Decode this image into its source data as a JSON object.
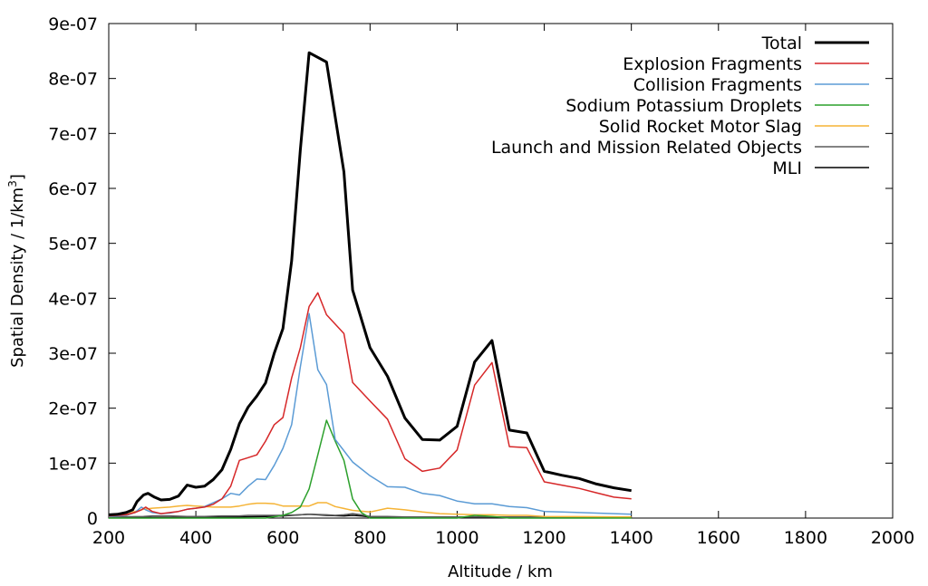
{
  "chart_data": {
    "type": "line",
    "xlabel": "Altitude / km",
    "ylabel": "Spatial Density / 1/km",
    "ylabel_sup": "3",
    "ylabel_suffix": "]",
    "xlim": [
      200,
      2000
    ],
    "ylim": [
      0,
      9e-07
    ],
    "x_ticks": [
      200,
      400,
      600,
      800,
      1000,
      1200,
      1400,
      1600,
      1800,
      2000
    ],
    "x_tick_labels": [
      "200",
      "400",
      "600",
      "800",
      "1000",
      "1200",
      "1400",
      "1600",
      "1800",
      "2000"
    ],
    "y_ticks": [
      0,
      1e-07,
      2e-07,
      3e-07,
      4e-07,
      5e-07,
      6e-07,
      7e-07,
      8e-07,
      9e-07
    ],
    "y_tick_labels": [
      "0",
      "1e-07",
      "2e-07",
      "3e-07",
      "4e-07",
      "5e-07",
      "6e-07",
      "7e-07",
      "8e-07",
      "9e-07"
    ],
    "grid": false,
    "legend_position": "top-right",
    "series": [
      {
        "name": "Total",
        "color": "#000000",
        "width": "thick",
        "points": [
          [
            200,
            6e-09
          ],
          [
            220,
            7e-09
          ],
          [
            240,
            1e-08
          ],
          [
            255,
            1.5e-08
          ],
          [
            265,
            3e-08
          ],
          [
            280,
            4.2e-08
          ],
          [
            290,
            4.5e-08
          ],
          [
            305,
            3.8e-08
          ],
          [
            320,
            3.3e-08
          ],
          [
            340,
            3.4e-08
          ],
          [
            360,
            4e-08
          ],
          [
            380,
            6e-08
          ],
          [
            400,
            5.6e-08
          ],
          [
            420,
            5.8e-08
          ],
          [
            440,
            7e-08
          ],
          [
            460,
            8.8e-08
          ],
          [
            480,
            1.25e-07
          ],
          [
            500,
            1.72e-07
          ],
          [
            520,
            2.02e-07
          ],
          [
            540,
            2.22e-07
          ],
          [
            560,
            2.46e-07
          ],
          [
            580,
            3e-07
          ],
          [
            600,
            3.45e-07
          ],
          [
            620,
            4.68e-07
          ],
          [
            640,
            6.7e-07
          ],
          [
            660,
            8.47e-07
          ],
          [
            700,
            8.3e-07
          ],
          [
            740,
            6.3e-07
          ],
          [
            760,
            4.15e-07
          ],
          [
            800,
            3.1e-07
          ],
          [
            840,
            2.58e-07
          ],
          [
            880,
            1.82e-07
          ],
          [
            920,
            1.43e-07
          ],
          [
            960,
            1.42e-07
          ],
          [
            1000,
            1.67e-07
          ],
          [
            1040,
            2.84e-07
          ],
          [
            1080,
            3.23e-07
          ],
          [
            1120,
            1.6e-07
          ],
          [
            1160,
            1.55e-07
          ],
          [
            1200,
            8.5e-08
          ],
          [
            1240,
            7.8e-08
          ],
          [
            1280,
            7.2e-08
          ],
          [
            1320,
            6.2e-08
          ],
          [
            1360,
            5.5e-08
          ],
          [
            1400,
            5e-08
          ]
        ]
      },
      {
        "name": "Explosion Fragments",
        "color": "#d62728",
        "width": "thin",
        "points": [
          [
            200,
            4e-09
          ],
          [
            240,
            6e-09
          ],
          [
            260,
            1e-08
          ],
          [
            275,
            1.5e-08
          ],
          [
            285,
            2e-08
          ],
          [
            300,
            1.2e-08
          ],
          [
            320,
            8e-09
          ],
          [
            340,
            1e-08
          ],
          [
            360,
            1.2e-08
          ],
          [
            380,
            1.6e-08
          ],
          [
            400,
            1.8e-08
          ],
          [
            420,
            2e-08
          ],
          [
            440,
            2.5e-08
          ],
          [
            460,
            3.5e-08
          ],
          [
            480,
            5.8e-08
          ],
          [
            500,
            1.05e-07
          ],
          [
            520,
            1.1e-07
          ],
          [
            540,
            1.15e-07
          ],
          [
            560,
            1.4e-07
          ],
          [
            580,
            1.7e-07
          ],
          [
            600,
            1.83e-07
          ],
          [
            620,
            2.55e-07
          ],
          [
            640,
            3.1e-07
          ],
          [
            660,
            3.85e-07
          ],
          [
            680,
            4.1e-07
          ],
          [
            700,
            3.7e-07
          ],
          [
            740,
            3.36e-07
          ],
          [
            760,
            2.47e-07
          ],
          [
            800,
            2.13e-07
          ],
          [
            840,
            1.8e-07
          ],
          [
            880,
            1.08e-07
          ],
          [
            920,
            8.5e-08
          ],
          [
            960,
            9.1e-08
          ],
          [
            1000,
            1.24e-07
          ],
          [
            1040,
            2.42e-07
          ],
          [
            1080,
            2.83e-07
          ],
          [
            1120,
            1.3e-07
          ],
          [
            1160,
            1.28e-07
          ],
          [
            1200,
            6.6e-08
          ],
          [
            1240,
            6e-08
          ],
          [
            1280,
            5.4e-08
          ],
          [
            1320,
            4.6e-08
          ],
          [
            1360,
            3.8e-08
          ],
          [
            1400,
            3.5e-08
          ]
        ]
      },
      {
        "name": "Collision Fragments",
        "color": "#5b9bd5",
        "width": "thin",
        "points": [
          [
            200,
            3e-09
          ],
          [
            240,
            5e-09
          ],
          [
            260,
            1e-08
          ],
          [
            275,
            2e-08
          ],
          [
            285,
            1.5e-08
          ],
          [
            300,
            1e-08
          ],
          [
            320,
            8e-09
          ],
          [
            340,
            9e-09
          ],
          [
            360,
            1.2e-08
          ],
          [
            380,
            1.6e-08
          ],
          [
            400,
            1.8e-08
          ],
          [
            420,
            2.1e-08
          ],
          [
            440,
            2.8e-08
          ],
          [
            460,
            3.5e-08
          ],
          [
            480,
            4.5e-08
          ],
          [
            500,
            4.2e-08
          ],
          [
            520,
            5.8e-08
          ],
          [
            540,
            7.1e-08
          ],
          [
            560,
            7e-08
          ],
          [
            580,
            9.6e-08
          ],
          [
            600,
            1.27e-07
          ],
          [
            620,
            1.7e-07
          ],
          [
            640,
            2.75e-07
          ],
          [
            660,
            3.72e-07
          ],
          [
            680,
            2.7e-07
          ],
          [
            700,
            2.43e-07
          ],
          [
            720,
            1.43e-07
          ],
          [
            760,
            1.02e-07
          ],
          [
            800,
            7.7e-08
          ],
          [
            840,
            5.7e-08
          ],
          [
            880,
            5.6e-08
          ],
          [
            920,
            4.5e-08
          ],
          [
            960,
            4.1e-08
          ],
          [
            1000,
            3.1e-08
          ],
          [
            1040,
            2.6e-08
          ],
          [
            1080,
            2.6e-08
          ],
          [
            1120,
            2.1e-08
          ],
          [
            1160,
            1.9e-08
          ],
          [
            1200,
            1.2e-08
          ],
          [
            1240,
            1.1e-08
          ],
          [
            1280,
            1e-08
          ],
          [
            1320,
            9e-09
          ],
          [
            1360,
            8e-09
          ],
          [
            1400,
            7e-09
          ]
        ]
      },
      {
        "name": "Sodium Potassium Droplets",
        "color": "#2ca02c",
        "width": "thin",
        "points": [
          [
            200,
            0
          ],
          [
            560,
            0
          ],
          [
            600,
            5e-09
          ],
          [
            620,
            1e-08
          ],
          [
            640,
            2e-08
          ],
          [
            660,
            5.3e-08
          ],
          [
            680,
            1.15e-07
          ],
          [
            700,
            1.78e-07
          ],
          [
            720,
            1.4e-07
          ],
          [
            740,
            1.05e-07
          ],
          [
            760,
            3.5e-08
          ],
          [
            780,
            1e-08
          ],
          [
            800,
            0
          ],
          [
            1000,
            0
          ],
          [
            1040,
            5e-09
          ],
          [
            1080,
            3e-09
          ],
          [
            1120,
            0
          ],
          [
            1400,
            0
          ]
        ]
      },
      {
        "name": "Solid Rocket Motor Slag",
        "color": "#f5b335",
        "width": "thin",
        "points": [
          [
            200,
            3e-09
          ],
          [
            240,
            6e-09
          ],
          [
            260,
            1.2e-08
          ],
          [
            280,
            1.6e-08
          ],
          [
            300,
            1.8e-08
          ],
          [
            320,
            1.9e-08
          ],
          [
            340,
            2e-08
          ],
          [
            360,
            2.2e-08
          ],
          [
            380,
            2.3e-08
          ],
          [
            400,
            2.2e-08
          ],
          [
            420,
            2.1e-08
          ],
          [
            440,
            2e-08
          ],
          [
            460,
            2e-08
          ],
          [
            480,
            2e-08
          ],
          [
            500,
            2.2e-08
          ],
          [
            520,
            2.5e-08
          ],
          [
            540,
            2.7e-08
          ],
          [
            560,
            2.7e-08
          ],
          [
            580,
            2.6e-08
          ],
          [
            600,
            2.2e-08
          ],
          [
            620,
            2.2e-08
          ],
          [
            640,
            2.2e-08
          ],
          [
            660,
            2.2e-08
          ],
          [
            680,
            2.8e-08
          ],
          [
            700,
            2.8e-08
          ],
          [
            720,
            2.1e-08
          ],
          [
            760,
            1.4e-08
          ],
          [
            800,
            1.1e-08
          ],
          [
            840,
            1.8e-08
          ],
          [
            880,
            1.5e-08
          ],
          [
            920,
            1.1e-08
          ],
          [
            960,
            8e-09
          ],
          [
            1000,
            7e-09
          ],
          [
            1040,
            6e-09
          ],
          [
            1080,
            6e-09
          ],
          [
            1120,
            5e-09
          ],
          [
            1160,
            5e-09
          ],
          [
            1200,
            3e-09
          ],
          [
            1400,
            2e-09
          ]
        ]
      },
      {
        "name": "Launch and Mission Related Objects",
        "color": "#5a5a5a",
        "width": "thin",
        "points": [
          [
            200,
            2e-09
          ],
          [
            280,
            3e-09
          ],
          [
            300,
            4e-09
          ],
          [
            340,
            4e-09
          ],
          [
            380,
            3e-09
          ],
          [
            420,
            3e-09
          ],
          [
            460,
            4e-09
          ],
          [
            500,
            4e-09
          ],
          [
            520,
            5e-09
          ],
          [
            560,
            5e-09
          ],
          [
            600,
            5e-09
          ],
          [
            640,
            6e-09
          ],
          [
            660,
            7e-09
          ],
          [
            700,
            6e-09
          ],
          [
            720,
            5e-09
          ],
          [
            740,
            6e-09
          ],
          [
            760,
            8e-09
          ],
          [
            780,
            6e-09
          ],
          [
            800,
            3e-09
          ],
          [
            840,
            3e-09
          ],
          [
            880,
            2e-09
          ],
          [
            920,
            2e-09
          ],
          [
            1000,
            2e-09
          ],
          [
            1200,
            2e-09
          ],
          [
            1400,
            1e-09
          ]
        ]
      },
      {
        "name": "MLI",
        "color": "#000000",
        "width": "thin",
        "points": [
          [
            200,
            1e-09
          ],
          [
            300,
            1e-09
          ],
          [
            400,
            1e-09
          ],
          [
            500,
            2e-09
          ],
          [
            560,
            3e-09
          ],
          [
            600,
            4e-09
          ],
          [
            660,
            7e-09
          ],
          [
            700,
            5e-09
          ],
          [
            740,
            4e-09
          ],
          [
            760,
            5e-09
          ],
          [
            780,
            4e-09
          ],
          [
            800,
            2e-09
          ],
          [
            900,
            1e-09
          ],
          [
            1000,
            1e-09
          ],
          [
            1400,
            1e-09
          ]
        ]
      }
    ]
  }
}
